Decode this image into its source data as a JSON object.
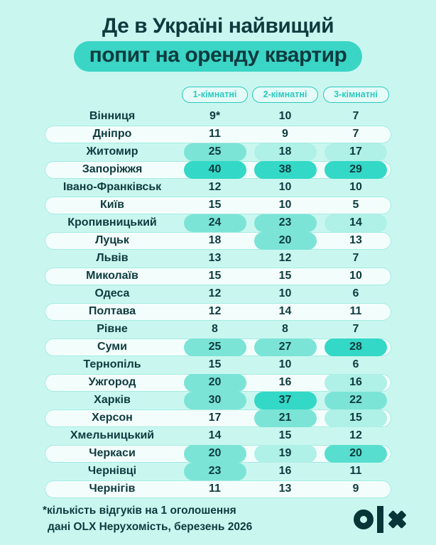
{
  "title": {
    "line1": "Де в Україні найвищий",
    "line2": "попит на оренду квартир"
  },
  "chart_data": {
    "type": "table",
    "title": "Де в Україні найвищий попит на оренду квартир",
    "columns": [
      "1-кімнатні",
      "2-кімнатні",
      "3-кімнатні"
    ],
    "value_unit": "кількість відгуків на 1 оголошення",
    "rows": [
      {
        "city": "Вінниця",
        "values": [
          "9*",
          "10",
          "7"
        ],
        "levels": [
          0,
          0,
          0
        ]
      },
      {
        "city": "Дніпро",
        "values": [
          "11",
          "9",
          "7"
        ],
        "levels": [
          0,
          0,
          0
        ]
      },
      {
        "city": "Житомир",
        "values": [
          "25",
          "18",
          "17"
        ],
        "levels": [
          2,
          1,
          1
        ]
      },
      {
        "city": "Запоріжжя",
        "values": [
          "40",
          "38",
          "29"
        ],
        "levels": [
          4,
          4,
          4
        ]
      },
      {
        "city": "Івано-Франківськ",
        "values": [
          "12",
          "10",
          "10"
        ],
        "levels": [
          0,
          0,
          0
        ]
      },
      {
        "city": "Київ",
        "values": [
          "15",
          "10",
          "5"
        ],
        "levels": [
          0,
          0,
          0
        ]
      },
      {
        "city": "Кропивницький",
        "values": [
          "24",
          "23",
          "14"
        ],
        "levels": [
          2,
          2,
          1
        ]
      },
      {
        "city": "Луцьк",
        "values": [
          "18",
          "20",
          "13"
        ],
        "levels": [
          0,
          2,
          0
        ]
      },
      {
        "city": "Львів",
        "values": [
          "13",
          "12",
          "7"
        ],
        "levels": [
          0,
          0,
          0
        ]
      },
      {
        "city": "Миколаїв",
        "values": [
          "15",
          "15",
          "10"
        ],
        "levels": [
          0,
          0,
          0
        ]
      },
      {
        "city": "Одеса",
        "values": [
          "12",
          "10",
          "6"
        ],
        "levels": [
          0,
          0,
          0
        ]
      },
      {
        "city": "Полтава",
        "values": [
          "12",
          "14",
          "11"
        ],
        "levels": [
          0,
          0,
          0
        ]
      },
      {
        "city": "Рівне",
        "values": [
          "8",
          "8",
          "7"
        ],
        "levels": [
          0,
          0,
          0
        ]
      },
      {
        "city": "Суми",
        "values": [
          "25",
          "27",
          "28"
        ],
        "levels": [
          2,
          2,
          4
        ]
      },
      {
        "city": "Тернопіль",
        "values": [
          "15",
          "10",
          "6"
        ],
        "levels": [
          0,
          0,
          0
        ]
      },
      {
        "city": "Ужгород",
        "values": [
          "20",
          "16",
          "16"
        ],
        "levels": [
          2,
          0,
          1
        ]
      },
      {
        "city": "Харків",
        "values": [
          "30",
          "37",
          "22"
        ],
        "levels": [
          2,
          4,
          2
        ]
      },
      {
        "city": "Херсон",
        "values": [
          "17",
          "21",
          "15"
        ],
        "levels": [
          0,
          2,
          1
        ]
      },
      {
        "city": "Хмельницький",
        "values": [
          "14",
          "15",
          "12"
        ],
        "levels": [
          0,
          0,
          0
        ]
      },
      {
        "city": "Черкаси",
        "values": [
          "20",
          "19",
          "20"
        ],
        "levels": [
          2,
          1,
          3
        ]
      },
      {
        "city": "Чернівці",
        "values": [
          "23",
          "16",
          "11"
        ],
        "levels": [
          2,
          0,
          0
        ]
      },
      {
        "city": "Чернігів",
        "values": [
          "11",
          "13",
          "9"
        ],
        "levels": [
          0,
          0,
          0
        ]
      }
    ]
  },
  "footer": {
    "note_line1": "*кількість відгуків на 1 оголошення",
    "note_line2": "дані OLX Нерухомість, березень 2026",
    "logo": "OLX"
  },
  "theme": {
    "background": "#c9f7f0",
    "text_dark": "#0e3b3e",
    "accent_teal": "#3bd5c6",
    "header_outline": "#2cc9bc",
    "row_pill_bg": "#f3fefc",
    "row_pill_border": "#a5ebe1",
    "level_light": "#aff0e7",
    "level_medium": "#7be4d6",
    "level_dark": "#58dece",
    "level_strong": "#33d8c6",
    "logo_color": "#073638"
  }
}
